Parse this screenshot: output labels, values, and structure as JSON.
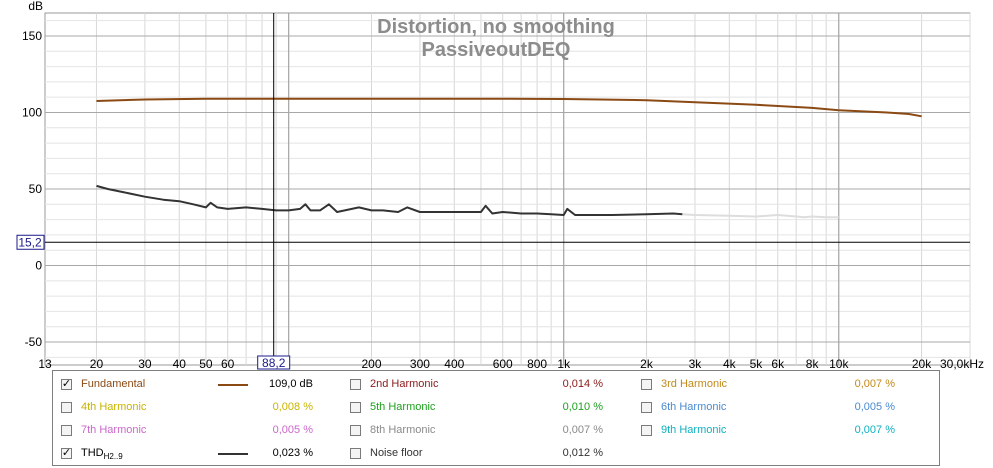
{
  "chart_data": {
    "type": "line",
    "title": "Distortion, no smoothing",
    "subtitle": "PassiveoutDEQ",
    "ylabel": "dB",
    "xlabel": "",
    "x_scale": "log",
    "xlim": [
      13,
      30000
    ],
    "ylim": [
      -65,
      165
    ],
    "grid": true,
    "x_ticks": [
      {
        "v": 13,
        "label": "13"
      },
      {
        "v": 20,
        "label": "20"
      },
      {
        "v": 30,
        "label": "30"
      },
      {
        "v": 40,
        "label": "40"
      },
      {
        "v": 50,
        "label": "50"
      },
      {
        "v": 60,
        "label": "60"
      },
      {
        "v": 200,
        "label": "200"
      },
      {
        "v": 300,
        "label": "300"
      },
      {
        "v": 400,
        "label": "400"
      },
      {
        "v": 600,
        "label": "600"
      },
      {
        "v": 800,
        "label": "800"
      },
      {
        "v": 1000,
        "label": "1k"
      },
      {
        "v": 2000,
        "label": "2k"
      },
      {
        "v": 3000,
        "label": "3k"
      },
      {
        "v": 4000,
        "label": "4k"
      },
      {
        "v": 5000,
        "label": "5k"
      },
      {
        "v": 6000,
        "label": "6k"
      },
      {
        "v": 8000,
        "label": "8k"
      },
      {
        "v": 10000,
        "label": "10k"
      },
      {
        "v": 20000,
        "label": "20k"
      },
      {
        "v": 30000,
        "label": "30,0kHz"
      }
    ],
    "y_ticks": [
      {
        "v": 150,
        "label": "150"
      },
      {
        "v": 100,
        "label": "100"
      },
      {
        "v": 50,
        "label": "50"
      },
      {
        "v": 0,
        "label": "0"
      },
      {
        "v": -50,
        "label": "-50"
      }
    ],
    "cursor": {
      "x": 88.2,
      "x_label": "88,2",
      "y": 15.2,
      "y_label": "15,2"
    },
    "series": [
      {
        "name": "Fundamental",
        "color": "#8b4a14",
        "x": [
          20,
          30,
          50,
          100,
          200,
          500,
          1000,
          2000,
          5000,
          8000,
          10000,
          15000,
          18000,
          20000
        ],
        "y": [
          107.5,
          108.5,
          109,
          109,
          109,
          109,
          108.8,
          108,
          105,
          103,
          101.5,
          100,
          99,
          97.5
        ]
      },
      {
        "name": "THD H2..9",
        "color": "#333333",
        "x": [
          20,
          22,
          25,
          30,
          35,
          40,
          45,
          50,
          52,
          55,
          60,
          70,
          80,
          90,
          100,
          110,
          115,
          120,
          130,
          140,
          150,
          160,
          180,
          200,
          220,
          250,
          270,
          300,
          350,
          400,
          450,
          500,
          520,
          550,
          600,
          700,
          800,
          900,
          1000,
          1030,
          1100,
          1200,
          1500,
          2000,
          2500,
          2700
        ],
        "y": [
          52,
          50,
          48,
          45,
          43,
          42,
          40,
          38,
          41,
          38,
          37,
          38,
          37,
          36,
          36,
          37,
          40,
          36,
          36,
          40,
          35,
          36,
          38,
          36,
          36,
          35,
          38,
          35,
          35,
          35,
          35,
          35,
          39,
          34,
          35,
          34,
          34,
          33.5,
          33,
          37,
          33,
          33,
          33,
          33.5,
          34,
          33.5
        ]
      },
      {
        "name": "Noise floor",
        "color": "#dddddd",
        "x": [
          2700,
          3000,
          4000,
          5000,
          6000,
          7000,
          7500,
          8000,
          9000,
          10000
        ],
        "y": [
          33.5,
          33,
          32.5,
          32,
          33,
          32,
          31.5,
          32,
          31.5,
          31.5
        ]
      }
    ]
  },
  "legend": {
    "items": [
      {
        "label": "Fundamental",
        "value": "109,0 dB",
        "checked": true,
        "color": "#8b4a14",
        "swatch": true
      },
      {
        "label": "2nd Harmonic",
        "value": "0,014 %",
        "checked": false,
        "color": "#8b1a1a",
        "swatch": false
      },
      {
        "label": "3rd Harmonic",
        "value": "0,007 %",
        "checked": false,
        "color": "#c08a1a",
        "swatch": false
      },
      {
        "label": "4th Harmonic",
        "value": "0,008 %",
        "checked": false,
        "color": "#c8b400",
        "swatch": false
      },
      {
        "label": "5th Harmonic",
        "value": "0,010 %",
        "checked": false,
        "color": "#1ea01e",
        "swatch": false
      },
      {
        "label": "6th Harmonic",
        "value": "0,005 %",
        "checked": false,
        "color": "#4a8ad0",
        "swatch": false
      },
      {
        "label": "7th Harmonic",
        "value": "0,005 %",
        "checked": false,
        "color": "#cc66cc",
        "swatch": false
      },
      {
        "label": "8th Harmonic",
        "value": "0,007 %",
        "checked": false,
        "color": "#8a8a8a",
        "swatch": false
      },
      {
        "label": "9th Harmonic",
        "value": "0,007 %",
        "checked": false,
        "color": "#10b0c0",
        "swatch": false
      },
      {
        "label": "THD",
        "label_sub": "H2..9",
        "value": "0,023 %",
        "checked": true,
        "color": "#333333",
        "swatch": true
      },
      {
        "label": "Noise floor",
        "value": "0,012 %",
        "checked": false,
        "color": "#333333",
        "swatch": false
      }
    ]
  }
}
